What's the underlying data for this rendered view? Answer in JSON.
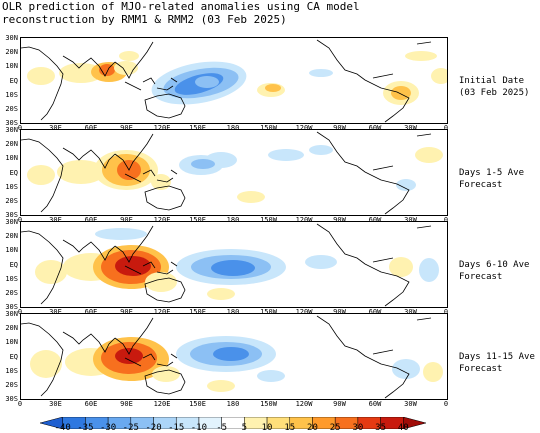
{
  "title_line1": "OLR prediction of MJO-related anomalies using CA model",
  "title_line2": "reconstruction by RMM1 & RMM2 (03 Feb 2025)",
  "lat_labels": [
    "30N",
    "20N",
    "10N",
    "EQ",
    "10S",
    "20S",
    "30S"
  ],
  "lon_labels": [
    "0",
    "30E",
    "60E",
    "90E",
    "120E",
    "150E",
    "180",
    "150W",
    "120W",
    "90W",
    "60W",
    "30W",
    "0"
  ],
  "panels": [
    {
      "label_line1": "Initial Date",
      "label_line2": "(03 Feb 2025)"
    },
    {
      "label_line1": "Days 1-5 Ave",
      "label_line2": "Forecast"
    },
    {
      "label_line1": "Days 6-10 Ave",
      "label_line2": "Forecast"
    },
    {
      "label_line1": "Days 11-15 Ave",
      "label_line2": "Forecast"
    }
  ],
  "colorbar": {
    "ticks": [
      "-40",
      "-35",
      "-30",
      "-25",
      "-20",
      "-15",
      "-10",
      "-5",
      "5",
      "10",
      "15",
      "20",
      "25",
      "30",
      "35",
      "40"
    ],
    "colors": [
      "#1f5fd0",
      "#2e78e0",
      "#4a91ea",
      "#69a9f0",
      "#8cc0f4",
      "#acd5f8",
      "#c8e6fb",
      "#e2f3fd",
      "#ffffff",
      "#fff2b0",
      "#ffdf7a",
      "#ffc24a",
      "#ff9a2a",
      "#f7701e",
      "#e53a12",
      "#c81a0e",
      "#a00c08"
    ]
  },
  "colors": {
    "neg_light": "#c8e6fb",
    "neg_mid": "#8cc0f4",
    "neg_strong": "#4a91ea",
    "pos_light": "#fff2b0",
    "pos_mid": "#ffc24a",
    "pos_strong": "#f7701e",
    "pos_max": "#c81a0e",
    "coast": "#000000"
  }
}
